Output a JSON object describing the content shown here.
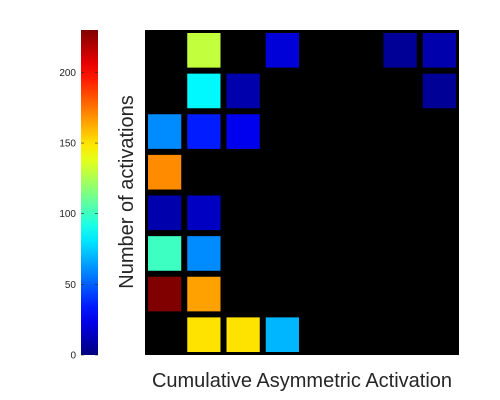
{
  "chart_data": {
    "type": "heatmap",
    "title": "",
    "xlabel": "Cumulative Asymmetric Activation",
    "ylabel": "Number of activations",
    "colormap": "jet",
    "background_color": "#000000",
    "grid": false,
    "rows": 8,
    "cols": 8,
    "cells": [
      {
        "row": 0,
        "col": 1,
        "value": 130
      },
      {
        "row": 0,
        "col": 3,
        "value": 20
      },
      {
        "row": 0,
        "col": 6,
        "value": 5
      },
      {
        "row": 0,
        "col": 7,
        "value": 10
      },
      {
        "row": 1,
        "col": 1,
        "value": 85
      },
      {
        "row": 1,
        "col": 2,
        "value": 10
      },
      {
        "row": 1,
        "col": 7,
        "value": 5
      },
      {
        "row": 2,
        "col": 0,
        "value": 60
      },
      {
        "row": 2,
        "col": 1,
        "value": 35
      },
      {
        "row": 2,
        "col": 2,
        "value": 25
      },
      {
        "row": 3,
        "col": 0,
        "value": 170
      },
      {
        "row": 4,
        "col": 0,
        "value": 10
      },
      {
        "row": 4,
        "col": 1,
        "value": 15
      },
      {
        "row": 5,
        "col": 0,
        "value": 100
      },
      {
        "row": 5,
        "col": 1,
        "value": 60
      },
      {
        "row": 6,
        "col": 0,
        "value": 230
      },
      {
        "row": 6,
        "col": 1,
        "value": 165
      },
      {
        "row": 7,
        "col": 1,
        "value": 150
      },
      {
        "row": 7,
        "col": 2,
        "value": 150
      },
      {
        "row": 7,
        "col": 3,
        "value": 70
      }
    ],
    "colorbar": {
      "min": 0,
      "max": 230,
      "ticks": [
        "0",
        "50",
        "100",
        "150",
        "200"
      ],
      "tick_values": [
        0,
        50,
        100,
        150,
        200
      ]
    }
  }
}
